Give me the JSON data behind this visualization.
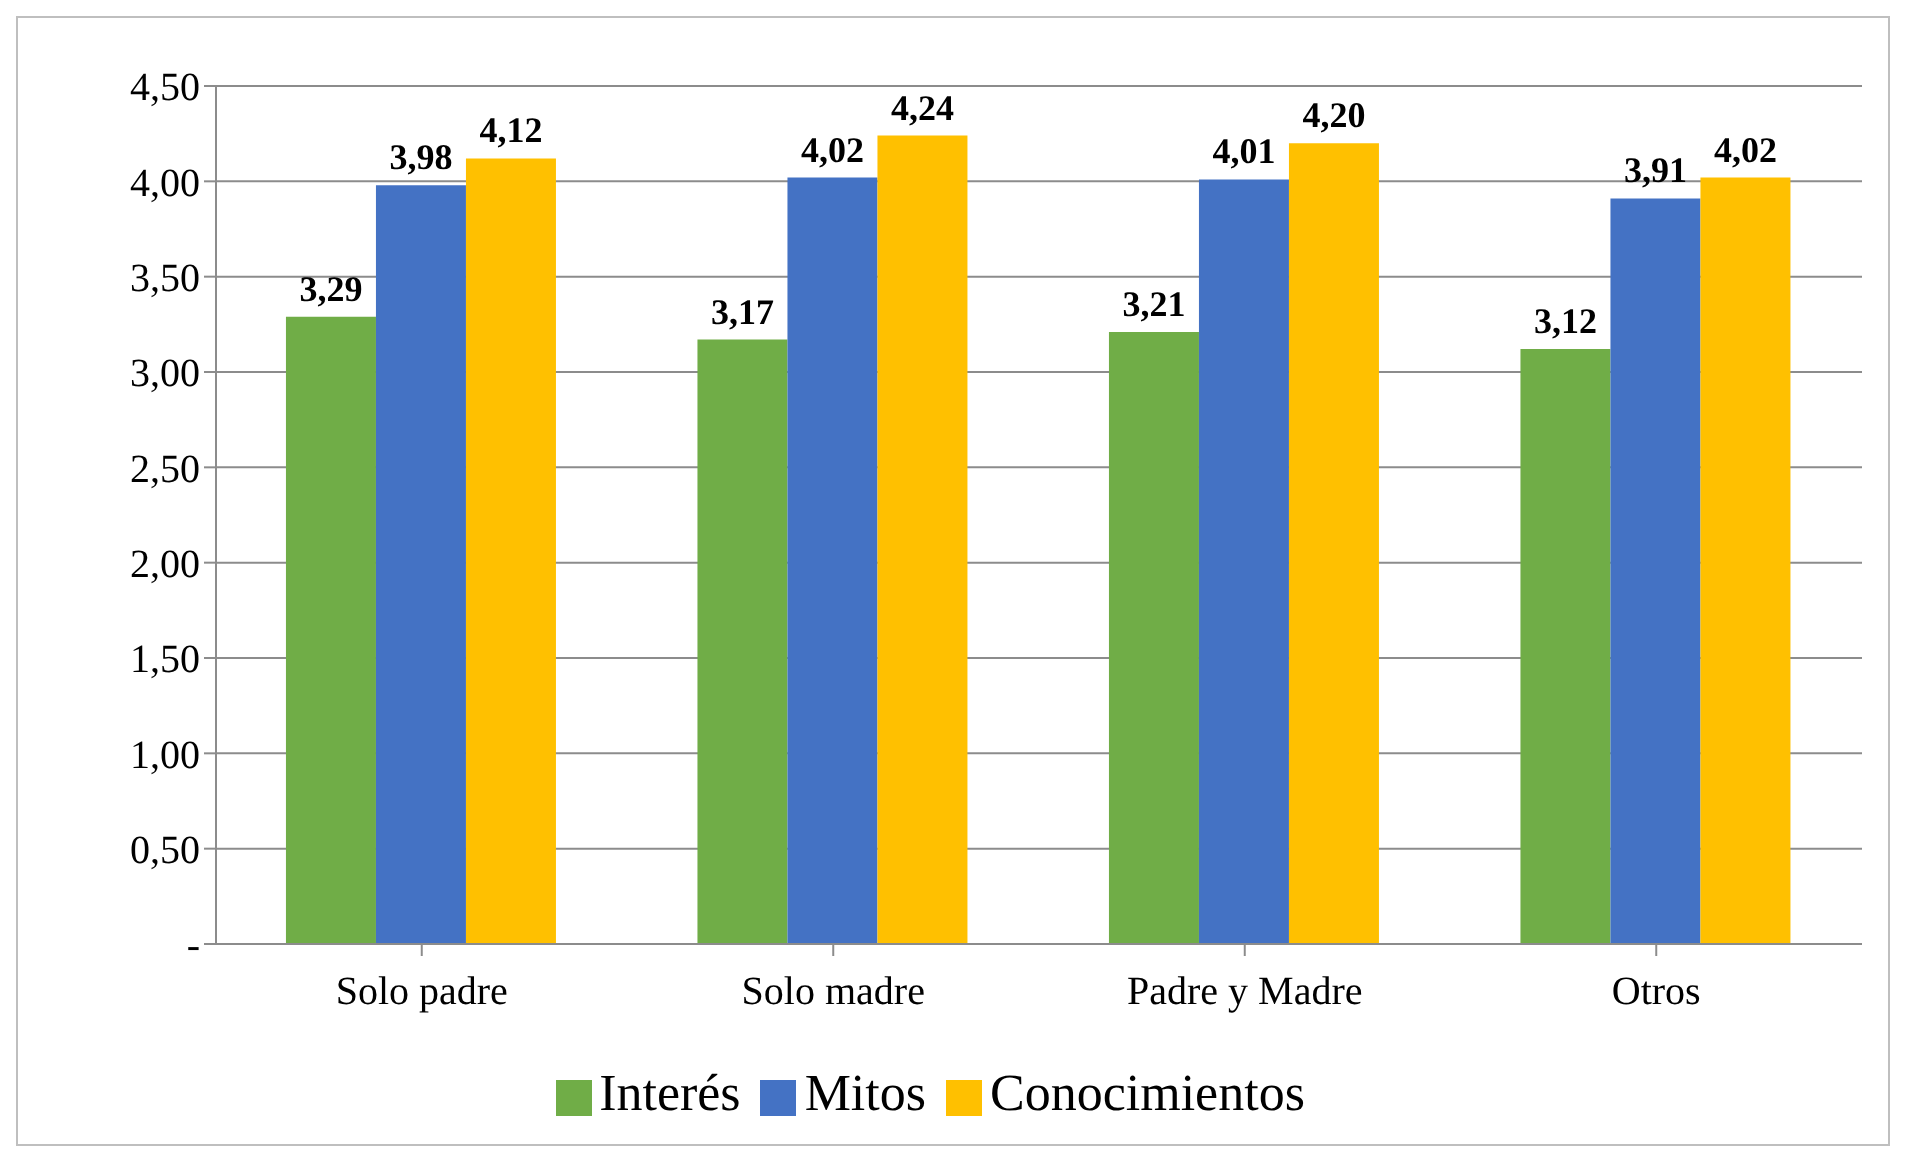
{
  "chart_data": {
    "type": "bar",
    "categories": [
      "Solo padre",
      "Solo madre",
      "Padre y Madre",
      "Otros"
    ],
    "series": [
      {
        "name": "Interés",
        "color": "#70ad47",
        "values": [
          3.29,
          3.17,
          3.21,
          3.12
        ],
        "value_labels": [
          "3,29",
          "3,17",
          "3,21",
          "3,12"
        ]
      },
      {
        "name": "Mitos",
        "color": "#4472c4",
        "values": [
          3.98,
          4.02,
          4.01,
          3.91
        ],
        "value_labels": [
          "3,98",
          "4,02",
          "4,01",
          "3,91"
        ]
      },
      {
        "name": "Conocimientos",
        "color": "#ffc000",
        "values": [
          4.12,
          4.24,
          4.2,
          4.02
        ],
        "value_labels": [
          "4,12",
          "4,24",
          "4,20",
          "4,02"
        ]
      }
    ],
    "ylim": [
      0,
      4.5
    ],
    "yticks": [
      {
        "value": 0,
        "label": "-"
      },
      {
        "value": 0.5,
        "label": "0,50"
      },
      {
        "value": 1,
        "label": "1,00"
      },
      {
        "value": 1.5,
        "label": "1,50"
      },
      {
        "value": 2,
        "label": "2,00"
      },
      {
        "value": 2.5,
        "label": "2,50"
      },
      {
        "value": 3,
        "label": "3,00"
      },
      {
        "value": 3.5,
        "label": "3,50"
      },
      {
        "value": 4,
        "label": "4,00"
      },
      {
        "value": 4.5,
        "label": "4,50"
      }
    ],
    "grid": "y",
    "legend": "bottom"
  }
}
